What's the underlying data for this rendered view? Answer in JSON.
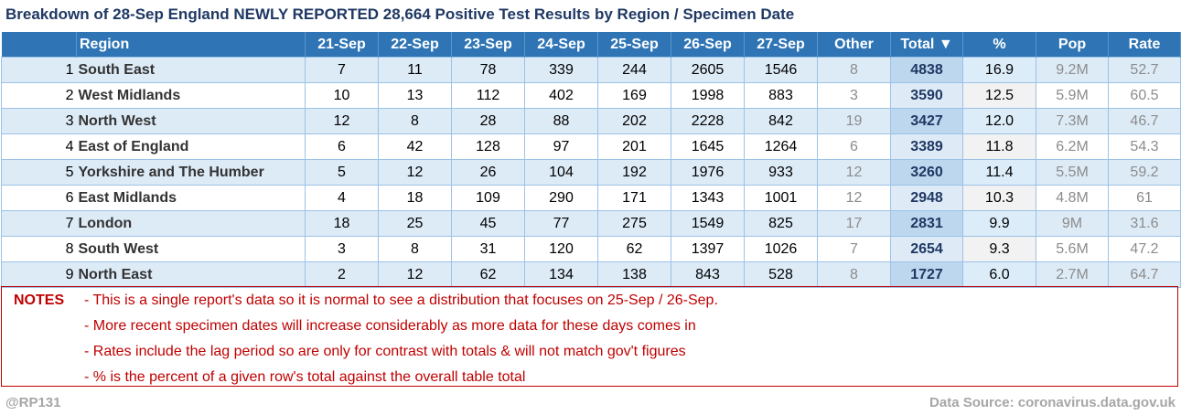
{
  "title": "Breakdown of 28-Sep England NEWLY REPORTED 28,664 Positive Test Results by Region / Specimen Date",
  "headers": [
    "Region",
    "21-Sep",
    "22-Sep",
    "23-Sep",
    "24-Sep",
    "25-Sep",
    "26-Sep",
    "27-Sep",
    "Other",
    "Total ▼",
    "%",
    "Pop",
    "Rate"
  ],
  "rows": [
    [
      "1",
      "South East",
      "7",
      "11",
      "78",
      "339",
      "244",
      "2605",
      "1546",
      "8",
      "4838",
      "16.9",
      "9.2M",
      "52.7"
    ],
    [
      "2",
      "West Midlands",
      "10",
      "13",
      "112",
      "402",
      "169",
      "1998",
      "883",
      "3",
      "3590",
      "12.5",
      "5.9M",
      "60.5"
    ],
    [
      "3",
      "North West",
      "12",
      "8",
      "28",
      "88",
      "202",
      "2228",
      "842",
      "19",
      "3427",
      "12.0",
      "7.3M",
      "46.7"
    ],
    [
      "4",
      "East of England",
      "6",
      "42",
      "128",
      "97",
      "201",
      "1645",
      "1264",
      "6",
      "3389",
      "11.8",
      "6.2M",
      "54.3"
    ],
    [
      "5",
      "Yorkshire and The Humber",
      "5",
      "12",
      "26",
      "104",
      "192",
      "1976",
      "933",
      "12",
      "3260",
      "11.4",
      "5.5M",
      "59.2"
    ],
    [
      "6",
      "East Midlands",
      "4",
      "18",
      "109",
      "290",
      "171",
      "1343",
      "1001",
      "12",
      "2948",
      "10.3",
      "4.8M",
      "61"
    ],
    [
      "7",
      "London",
      "18",
      "25",
      "45",
      "77",
      "275",
      "1549",
      "825",
      "17",
      "2831",
      "9.9",
      "9M",
      "31.6"
    ],
    [
      "8",
      "South West",
      "3",
      "8",
      "31",
      "120",
      "62",
      "1397",
      "1026",
      "7",
      "2654",
      "9.3",
      "5.6M",
      "47.2"
    ],
    [
      "9",
      "North East",
      "2",
      "12",
      "62",
      "134",
      "138",
      "843",
      "528",
      "8",
      "1727",
      "6.0",
      "2.7M",
      "64.7"
    ]
  ],
  "notes": {
    "label": "NOTES",
    "lines": [
      "- This is a single report's data so it is normal to see a distribution that focuses on 25-Sep / 26-Sep.",
      "- More recent specimen dates will increase considerably as more data for these days comes in",
      "- Rates include the lag period so are only for contrast with totals & will not match gov't figures",
      "- % is the percent of a given row's total against the overall table total"
    ]
  },
  "footer": {
    "handle": "@RP131",
    "source": "Data Source: coronavirus.data.gov.uk"
  },
  "colors": {
    "header_bg": "#2f75b5",
    "alt_row": "#ddebf7",
    "total_bg": "#bdd7ee",
    "title": "#1f3864",
    "notes": "#c00000",
    "muted": "#8c8c8c"
  }
}
